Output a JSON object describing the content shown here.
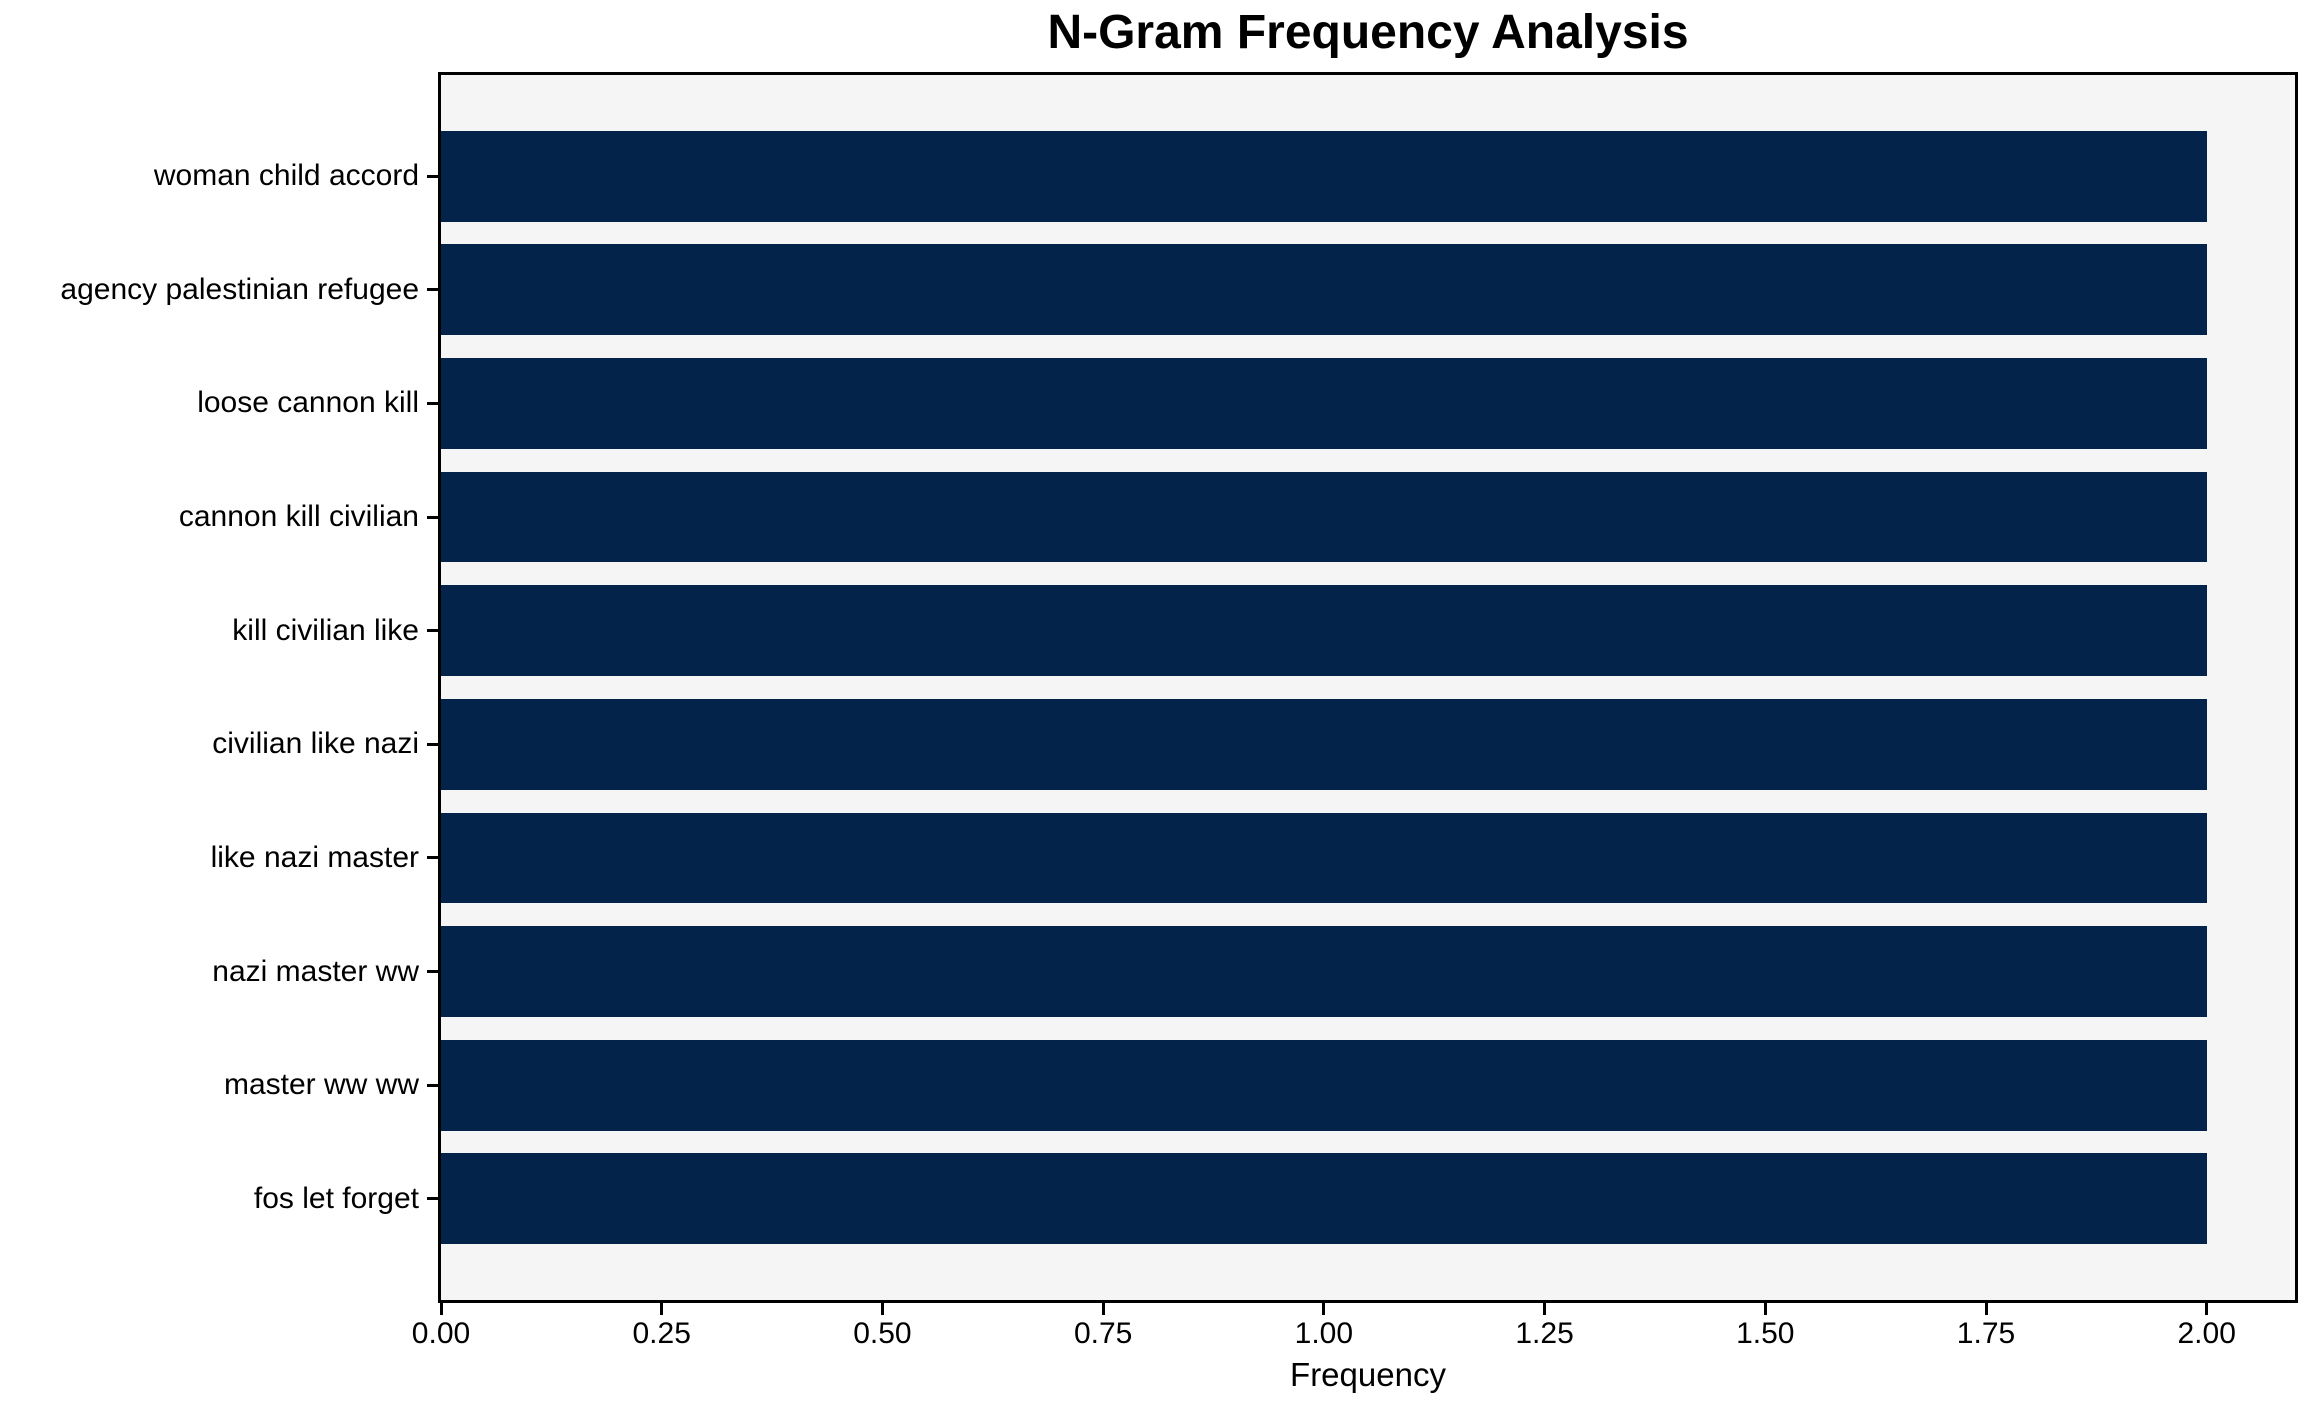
{
  "figure": {
    "background": "#ffffff"
  },
  "chart_data": {
    "type": "bar",
    "orientation": "horizontal",
    "title": "N-Gram Frequency Analysis",
    "xlabel": "Frequency",
    "ylabel": "",
    "categories": [
      "woman child accord",
      "agency palestinian refugee",
      "loose cannon kill",
      "cannon kill civilian",
      "kill civilian like",
      "civilian like nazi",
      "like nazi master",
      "nazi master ww",
      "master ww ww",
      "fos let forget"
    ],
    "values": [
      2,
      2,
      2,
      2,
      2,
      2,
      2,
      2,
      2,
      2
    ],
    "xlim": [
      0,
      2.1
    ],
    "xticks": [
      0,
      0.25,
      0.5,
      0.75,
      1,
      1.25,
      1.5,
      1.75,
      2
    ],
    "xtick_labels": [
      "0.00",
      "0.25",
      "0.50",
      "0.75",
      "1.00",
      "1.25",
      "1.50",
      "1.75",
      "2.00"
    ],
    "grid": "off",
    "legend": "off",
    "colors": {
      "bar": "#03234b",
      "plot_background": "#f5f5f6",
      "spine": "#000000",
      "text": "#000000"
    }
  }
}
